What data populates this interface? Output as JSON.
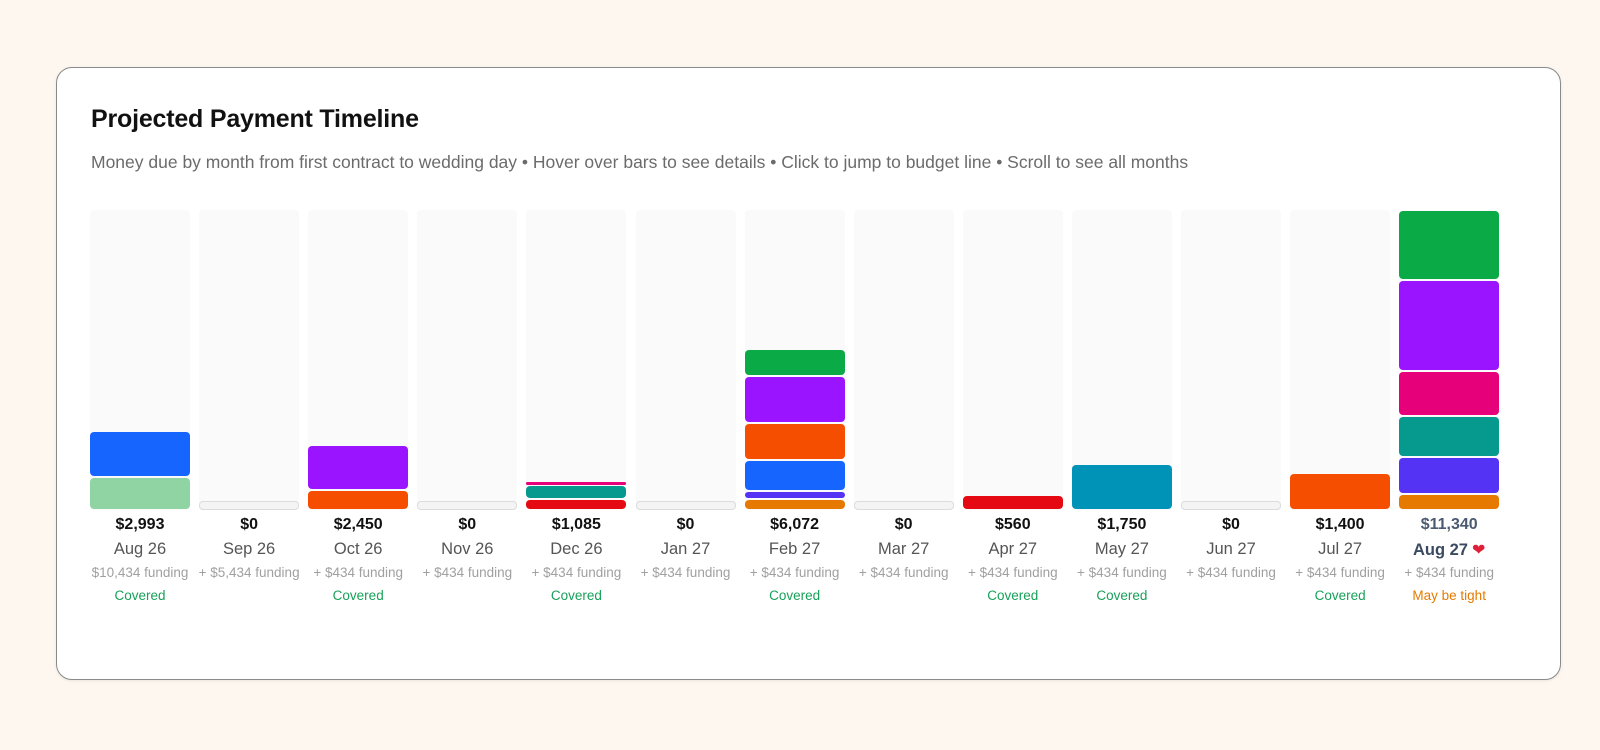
{
  "card": {
    "title": "Projected Payment Timeline",
    "subtitle": "Money due by month from first contract to wedding day • Hover over bars to see details • Click to jump to budget line • Scroll to see all months"
  },
  "chart_data": {
    "type": "bar",
    "stacked": true,
    "ymax": 11340,
    "columns": [
      {
        "label": "Aug 26",
        "total": 2993,
        "total_label": "$2,993",
        "funding": "$10,434 funding",
        "status": "Covered",
        "segments": [
          {
            "value": 1243,
            "color": "#8fd4a2"
          },
          {
            "value": 1750,
            "color": "#1665ff"
          }
        ]
      },
      {
        "label": "Sep 26",
        "total": 0,
        "total_label": "$0",
        "funding": "+ $5,434 funding",
        "status": "",
        "segments": []
      },
      {
        "label": "Oct 26",
        "total": 2450,
        "total_label": "$2,450",
        "funding": "+ $434 funding",
        "status": "Covered",
        "segments": [
          {
            "value": 750,
            "color": "#f54e00"
          },
          {
            "value": 1700,
            "color": "#9b14ff"
          }
        ]
      },
      {
        "label": "Nov 26",
        "total": 0,
        "total_label": "$0",
        "funding": "+ $434 funding",
        "status": "",
        "segments": []
      },
      {
        "label": "Dec 26",
        "total": 1085,
        "total_label": "$1,085",
        "funding": "+ $434 funding",
        "status": "Covered",
        "segments": [
          {
            "value": 400,
            "color": "#e50914"
          },
          {
            "value": 550,
            "color": "#069a8e"
          },
          {
            "value": 135,
            "color": "#e6007a"
          }
        ]
      },
      {
        "label": "Jan 27",
        "total": 0,
        "total_label": "$0",
        "funding": "+ $434 funding",
        "status": "",
        "segments": []
      },
      {
        "label": "Feb 27",
        "total": 6072,
        "total_label": "$6,072",
        "funding": "+ $434 funding",
        "status": "Covered",
        "segments": [
          {
            "value": 400,
            "color": "#e67a00"
          },
          {
            "value": 300,
            "color": "#5533f5"
          },
          {
            "value": 1200,
            "color": "#1665ff"
          },
          {
            "value": 1400,
            "color": "#f54e00"
          },
          {
            "value": 1750,
            "color": "#9b14ff"
          },
          {
            "value": 1022,
            "color": "#0aaa46"
          }
        ]
      },
      {
        "label": "Mar 27",
        "total": 0,
        "total_label": "$0",
        "funding": "+ $434 funding",
        "status": "",
        "segments": []
      },
      {
        "label": "Apr 27",
        "total": 560,
        "total_label": "$560",
        "funding": "+ $434 funding",
        "status": "Covered",
        "segments": [
          {
            "value": 560,
            "color": "#e50914"
          }
        ]
      },
      {
        "label": "May 27",
        "total": 1750,
        "total_label": "$1,750",
        "funding": "+ $434 funding",
        "status": "Covered",
        "segments": [
          {
            "value": 1750,
            "color": "#0093b8"
          }
        ]
      },
      {
        "label": "Jun 27",
        "total": 0,
        "total_label": "$0",
        "funding": "+ $434 funding",
        "status": "",
        "segments": []
      },
      {
        "label": "Jul 27",
        "total": 1400,
        "total_label": "$1,400",
        "funding": "+ $434 funding",
        "status": "Covered",
        "segments": [
          {
            "value": 1400,
            "color": "#f54e00"
          }
        ]
      },
      {
        "label": "Aug 27",
        "total": 11340,
        "total_label": "$11,340",
        "funding": "+ $434 funding",
        "status": "May be tight",
        "accent": true,
        "heart": "❤",
        "segments": [
          {
            "value": 600,
            "color": "#e67a00"
          },
          {
            "value": 1400,
            "color": "#5533f5"
          },
          {
            "value": 1550,
            "color": "#069a8e"
          },
          {
            "value": 1700,
            "color": "#e6007a"
          },
          {
            "value": 3440,
            "color": "#9b14ff"
          },
          {
            "value": 2650,
            "color": "#0aaa46"
          }
        ]
      }
    ]
  }
}
